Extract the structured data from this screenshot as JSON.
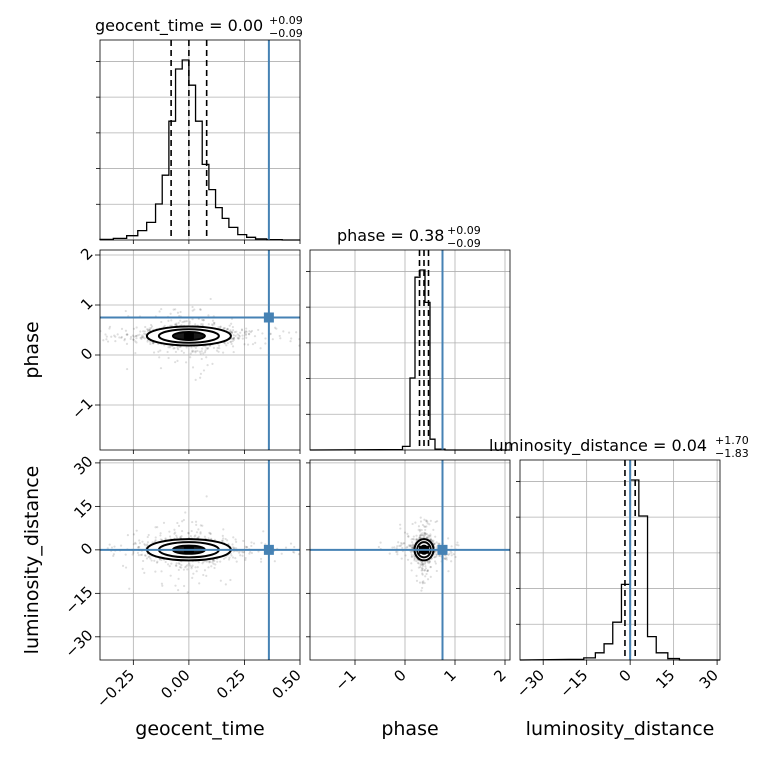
{
  "chart_data": {
    "type": "corner",
    "parameters": [
      "geocent_time",
      "phase",
      "luminosity_distance"
    ],
    "truths": {
      "geocent_time": 0.36,
      "phase": 0.75,
      "luminosity_distance": 0.0
    },
    "truth_color": "#4682b4",
    "hist_color": "#000000",
    "grid": true,
    "titles": [
      {
        "param": "geocent_time",
        "text": "geocent_time = 0.00",
        "plus": "+0.09",
        "minus": "−0.09"
      },
      {
        "param": "phase",
        "text": "phase = 0.38",
        "plus": "+0.09",
        "minus": "−0.09"
      },
      {
        "param": "luminosity_distance",
        "text": "luminosity_distance = 0.04",
        "plus": "+1.70",
        "minus": "−1.83"
      }
    ],
    "axes": {
      "geocent_time": {
        "range": [
          -0.4,
          0.5
        ],
        "ticks": [
          -0.25,
          0.0,
          0.25,
          0.5
        ],
        "tick_labels": [
          "−0.25",
          "0.00",
          "0.25",
          "0.50"
        ]
      },
      "phase": {
        "range": [
          -1.9,
          2.1
        ],
        "ticks": [
          -1,
          0,
          1,
          2
        ],
        "tick_labels": [
          "−1",
          "0",
          "1",
          "2"
        ]
      },
      "luminosity_distance": {
        "range": [
          -38,
          31
        ],
        "ticks": [
          -30,
          -15,
          0,
          15,
          30
        ],
        "tick_labels": [
          "−30",
          "−15",
          "0",
          "15",
          "30"
        ]
      }
    },
    "quantiles": {
      "geocent_time": [
        -0.08,
        0.0,
        0.08
      ],
      "phase": [
        0.29,
        0.38,
        0.47
      ],
      "luminosity_distance": [
        -1.79,
        0.04,
        1.74
      ]
    },
    "histograms": {
      "geocent_time": {
        "edges": [
          -0.4,
          -0.34,
          -0.28,
          -0.23,
          -0.19,
          -0.15,
          -0.12,
          -0.09,
          -0.06,
          -0.03,
          0.0,
          0.03,
          0.06,
          0.09,
          0.12,
          0.15,
          0.18,
          0.22,
          0.26,
          0.3,
          0.35,
          0.42
        ],
        "counts": [
          0.3,
          0.9,
          2.4,
          5.2,
          9.8,
          20,
          36,
          66,
          95,
          100,
          86,
          66,
          42,
          28,
          18,
          12,
          7,
          3,
          1.5,
          0.6,
          0.2
        ]
      },
      "phase": {
        "edges": [
          -0.25,
          -0.05,
          0.1,
          0.2,
          0.3,
          0.4,
          0.5,
          0.6,
          0.8
        ],
        "counts": [
          0.2,
          2,
          40,
          96,
          100,
          82,
          6,
          0.5
        ]
      },
      "luminosity_distance": {
        "edges": [
          -21,
          -16,
          -12,
          -9,
          -6,
          -3,
          0,
          3,
          6,
          9,
          13,
          17
        ],
        "counts": [
          0.3,
          1.2,
          4,
          9,
          21,
          42,
          100,
          80,
          13,
          4,
          0.8
        ]
      }
    }
  },
  "labels": {
    "x_geocent": "geocent_time",
    "x_phase": "phase",
    "x_lumdist": "luminosity_distance",
    "y_phase": "phase",
    "y_lumdist": "luminosity_distance"
  }
}
